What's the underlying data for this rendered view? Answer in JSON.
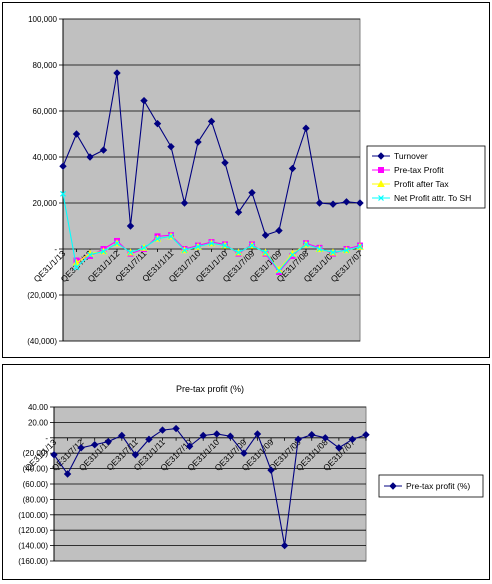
{
  "chart_data": [
    {
      "type": "line",
      "title": "",
      "xlabel": "",
      "ylabel": "",
      "ylim": [
        -40000,
        100000
      ],
      "y_ticks": [
        "100,000",
        "80,000",
        "60,000",
        "40,000",
        "20,000",
        "-",
        "(20,000)",
        "(40,000)"
      ],
      "y_tick_values": [
        100000,
        80000,
        60000,
        40000,
        20000,
        0,
        -20000,
        -40000
      ],
      "x_tick_labels": [
        "QE31/1/13",
        "QE31/7/12",
        "QE31/1/12",
        "QE31/7/11",
        "QE31/1/11",
        "QE31/7/10",
        "QE31/1/10",
        "QE31/7/09",
        "QE31/1/09",
        "QE31/7/08",
        "QE31/1/08",
        "QE31/7/07"
      ],
      "grid": true,
      "plot_background": "#c0c0c0",
      "legend_position": "right",
      "series": [
        {
          "name": "Turnover",
          "color": "#000080",
          "marker": "diamond",
          "values": [
            36000,
            50000,
            40000,
            43000,
            76500,
            10000,
            64500,
            54500,
            44500,
            20000,
            46500,
            55500,
            37500,
            16000,
            24500,
            6000,
            8000,
            35000,
            52500,
            20000,
            19500,
            20500,
            20000
          ]
        },
        {
          "name": "Pre-tax Profit",
          "color": "#ff00ff",
          "marker": "square",
          "values": [
            null,
            -5000,
            -3000,
            0,
            3500,
            -2000,
            0,
            5500,
            6000,
            0,
            1500,
            3000,
            2000,
            -2000,
            2000,
            -2000,
            -10000,
            -3000,
            2500,
            500,
            -2000,
            0,
            1500
          ]
        },
        {
          "name": "Profit after Tax",
          "color": "#ffff00",
          "marker": "triangle",
          "values": [
            null,
            -6000,
            -2000,
            -1000,
            2500,
            -1500,
            500,
            4500,
            5500,
            -500,
            1000,
            2500,
            1500,
            -1500,
            1500,
            -1500,
            -9000,
            -2000,
            2000,
            0,
            -1500,
            -500,
            1000
          ]
        },
        {
          "name": "Net Profit attr. To SH",
          "color": "#00ffff",
          "marker": "x",
          "values": [
            24000,
            -8000,
            -2500,
            -1000,
            2500,
            -1500,
            500,
            4500,
            5500,
            -500,
            1000,
            2500,
            1500,
            -1500,
            1500,
            -1500,
            -9500,
            -2500,
            2000,
            0,
            -1500,
            -500,
            1000
          ]
        }
      ]
    },
    {
      "type": "line",
      "title": "Pre-tax profit (%)",
      "xlabel": "",
      "ylabel": "",
      "ylim": [
        -160,
        40
      ],
      "y_ticks": [
        "40.00",
        "20.00",
        "-",
        "(20.00)",
        "(40.00)",
        "(60.00)",
        "(80.00)",
        "(100.00)",
        "(120.00)",
        "(140.00)",
        "(160.00)"
      ],
      "y_tick_values": [
        40,
        20,
        0,
        -20,
        -40,
        -60,
        -80,
        -100,
        -120,
        -140,
        -160
      ],
      "x_tick_labels": [
        "QE31/1/13",
        "QE31/7/12",
        "QE31/1/12",
        "QE31/7/11",
        "QE31/1/11",
        "QE31/7/10",
        "QE31/1/10",
        "QE31/7/09",
        "QE31/1/09",
        "QE31/7/08",
        "QE31/1/08",
        "QE31/7/07"
      ],
      "grid": true,
      "plot_background": "#c0c0c0",
      "legend_position": "right",
      "series": [
        {
          "name": "Pre-tax profit (%)",
          "color": "#000080",
          "marker": "diamond",
          "values": [
            -22,
            -47,
            -13,
            -9,
            -5,
            3,
            -22,
            -2,
            10,
            12,
            -11,
            3,
            5,
            2,
            -20,
            5,
            -42,
            -140,
            -2,
            4,
            0,
            -13,
            -2,
            4
          ]
        }
      ]
    }
  ]
}
